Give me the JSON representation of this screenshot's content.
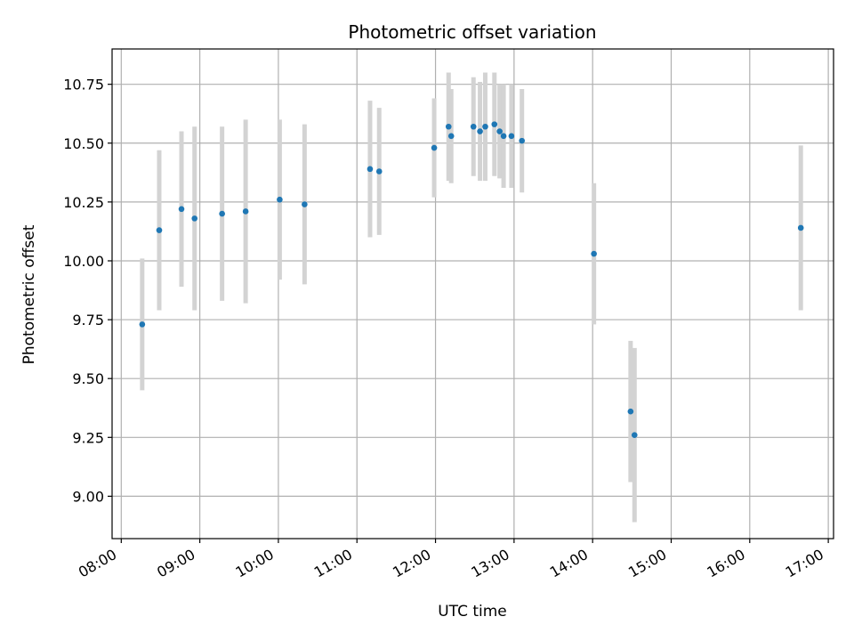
{
  "chart_data": {
    "type": "scatter",
    "title": "Photometric offset variation",
    "xlabel": "UTC time",
    "ylabel": "Photometric offset",
    "x_unit": "hours UTC",
    "xlim": [
      "07:53",
      "17:04"
    ],
    "ylim": [
      8.82,
      10.9
    ],
    "grid": true,
    "x_ticks": [
      "08:00",
      "09:00",
      "10:00",
      "11:00",
      "12:00",
      "13:00",
      "14:00",
      "15:00",
      "16:00",
      "17:00"
    ],
    "y_ticks": [
      "9.00",
      "9.25",
      "9.50",
      "9.75",
      "10.00",
      "10.25",
      "10.50",
      "10.75"
    ],
    "colors": {
      "point": "#1f77b4",
      "errorbar": "#d3d3d3",
      "grid": "#b0b0b0"
    },
    "series": [
      {
        "points": [
          {
            "x": "08:16",
            "y": 9.73,
            "err": 0.28
          },
          {
            "x": "08:29",
            "y": 10.13,
            "err": 0.34
          },
          {
            "x": "08:46",
            "y": 10.22,
            "err": 0.33
          },
          {
            "x": "08:56",
            "y": 10.18,
            "err": 0.39
          },
          {
            "x": "09:17",
            "y": 10.2,
            "err": 0.37
          },
          {
            "x": "09:35",
            "y": 10.21,
            "err": 0.39
          },
          {
            "x": "10:01",
            "y": 10.26,
            "err": 0.34
          },
          {
            "x": "10:20",
            "y": 10.24,
            "err": 0.34
          },
          {
            "x": "11:10",
            "y": 10.39,
            "err": 0.29
          },
          {
            "x": "11:17",
            "y": 10.38,
            "err": 0.27
          },
          {
            "x": "11:59",
            "y": 10.48,
            "err": 0.21
          },
          {
            "x": "12:10",
            "y": 10.57,
            "err": 0.23
          },
          {
            "x": "12:12",
            "y": 10.53,
            "err": 0.2
          },
          {
            "x": "12:29",
            "y": 10.57,
            "err": 0.21
          },
          {
            "x": "12:34",
            "y": 10.55,
            "err": 0.21
          },
          {
            "x": "12:38",
            "y": 10.57,
            "err": 0.23
          },
          {
            "x": "12:45",
            "y": 10.58,
            "err": 0.22
          },
          {
            "x": "12:49",
            "y": 10.55,
            "err": 0.2
          },
          {
            "x": "12:52",
            "y": 10.53,
            "err": 0.22
          },
          {
            "x": "12:58",
            "y": 10.53,
            "err": 0.22
          },
          {
            "x": "13:06",
            "y": 10.51,
            "err": 0.22
          },
          {
            "x": "14:01",
            "y": 10.03,
            "err": 0.3
          },
          {
            "x": "14:29",
            "y": 9.36,
            "err": 0.3
          },
          {
            "x": "14:32",
            "y": 9.26,
            "err": 0.37
          },
          {
            "x": "16:39",
            "y": 10.14,
            "err": 0.35
          }
        ]
      }
    ]
  }
}
